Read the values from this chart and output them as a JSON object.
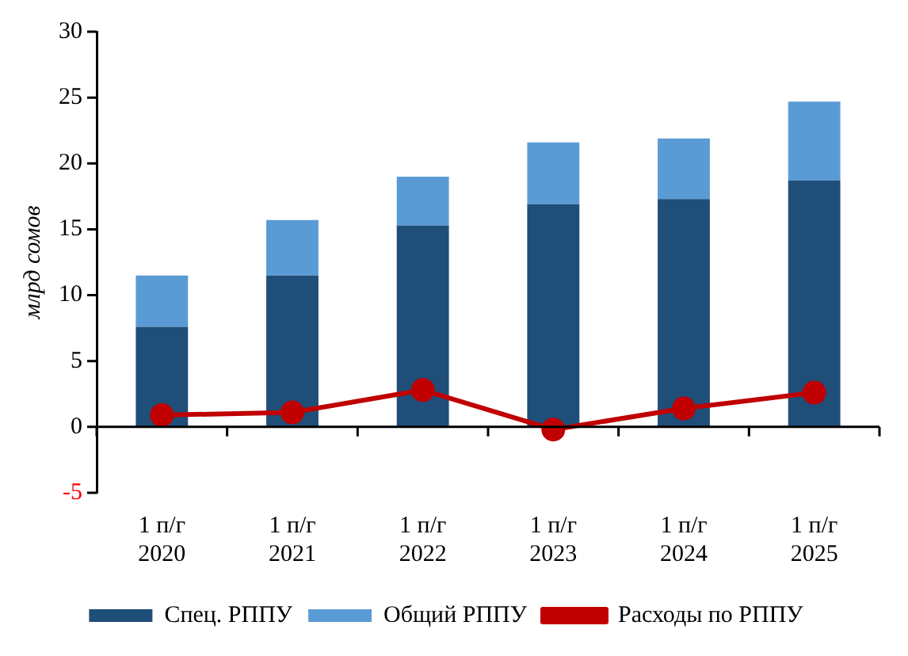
{
  "chart_data": {
    "type": "bar",
    "stacked": true,
    "ylabel": "млрд сомов",
    "categories": [
      "1 п/г 2020",
      "1 п/г 2021",
      "1 п/г 2022",
      "1 п/г 2023",
      "1 п/г 2024",
      "1 п/г 2025"
    ],
    "series": [
      {
        "name": "Спец. РППУ",
        "color": "#1f4e79",
        "values": [
          7.6,
          11.5,
          15.3,
          16.9,
          17.3,
          18.7
        ]
      },
      {
        "name": "Общий РППУ",
        "color": "#5b9bd5",
        "values": [
          3.9,
          4.2,
          3.7,
          4.7,
          4.6,
          6.0
        ]
      },
      {
        "name": "Расходы по РППУ",
        "type": "line",
        "color": "#c00000",
        "marker": "circle",
        "values": [
          0.9,
          1.1,
          2.8,
          -0.2,
          1.4,
          2.6
        ]
      }
    ],
    "ylim": [
      -5,
      30
    ],
    "yticks": [
      -5,
      0,
      5,
      10,
      15,
      20,
      25,
      30
    ],
    "ref_lines": [
      {
        "axis": "y",
        "value": 0,
        "color": "#000000"
      }
    ],
    "grid": false,
    "legend": "bottom"
  }
}
